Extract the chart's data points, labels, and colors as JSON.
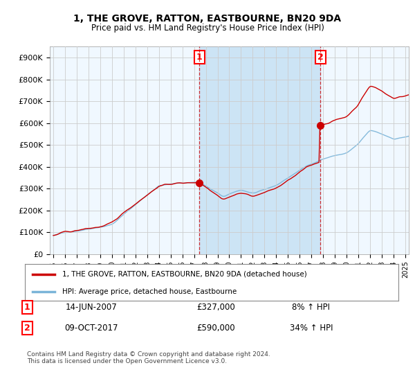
{
  "title": "1, THE GROVE, RATTON, EASTBOURNE, BN20 9DA",
  "subtitle": "Price paid vs. HM Land Registry's House Price Index (HPI)",
  "legend_line1": "1, THE GROVE, RATTON, EASTBOURNE, BN20 9DA (detached house)",
  "legend_line2": "HPI: Average price, detached house, Eastbourne",
  "footer": "Contains HM Land Registry data © Crown copyright and database right 2024.\nThis data is licensed under the Open Government Licence v3.0.",
  "sale1_label": "1",
  "sale1_date": "14-JUN-2007",
  "sale1_price": "£327,000",
  "sale1_hpi": "8% ↑ HPI",
  "sale2_label": "2",
  "sale2_date": "09-OCT-2017",
  "sale2_price": "£590,000",
  "sale2_hpi": "34% ↑ HPI",
  "sale1_x": 2007.45,
  "sale1_y": 327000,
  "sale2_x": 2017.77,
  "sale2_y": 590000,
  "hpi_line_color": "#7ab4d8",
  "price_line_color": "#cc0000",
  "fill_color": "#cce4f5",
  "ylim_min": 0,
  "ylim_max": 950000,
  "yticks": [
    0,
    100000,
    200000,
    300000,
    400000,
    500000,
    600000,
    700000,
    800000,
    900000
  ],
  "ytick_labels": [
    "£0",
    "£100K",
    "£200K",
    "£300K",
    "£400K",
    "£500K",
    "£600K",
    "£700K",
    "£800K",
    "£900K"
  ],
  "xlim_min": 1994.7,
  "xlim_max": 2025.3,
  "background_color": "#ffffff",
  "grid_color": "#cccccc",
  "chart_bg": "#f0f8ff"
}
